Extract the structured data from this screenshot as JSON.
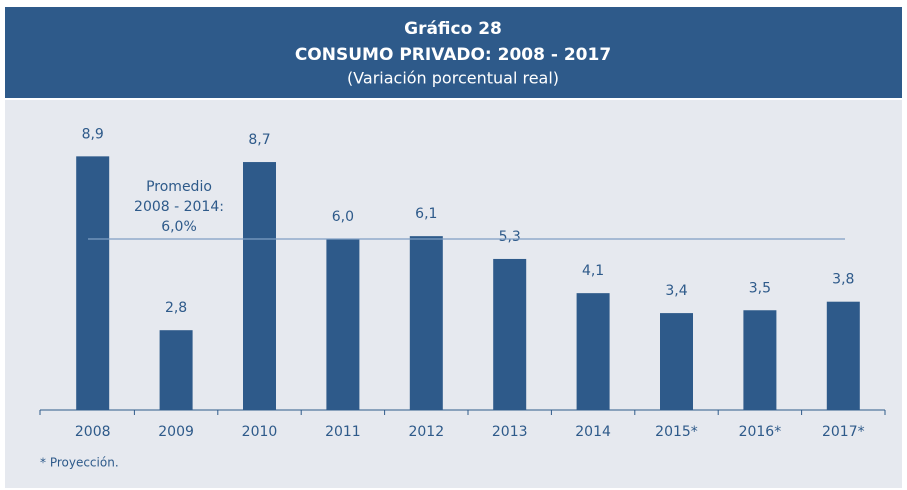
{
  "chart_data": {
    "type": "bar",
    "title": "Gráfico 28",
    "subtitle": "CONSUMO PRIVADO: 2008 - 2017",
    "y_label": "(Variación porcentual real)",
    "categories": [
      "2008",
      "2009",
      "2010",
      "2011",
      "2012",
      "2013",
      "2014",
      "2015*",
      "2016*",
      "2017*"
    ],
    "values": [
      8.9,
      2.8,
      8.7,
      6.0,
      6.1,
      5.3,
      4.1,
      3.4,
      3.5,
      3.8
    ],
    "value_labels": [
      "8,9",
      "2,8",
      "8,7",
      "6,0",
      "6,1",
      "5,3",
      "4,1",
      "3,4",
      "3,5",
      "3,8"
    ],
    "color": "#2e5a8a",
    "ylim": [
      0,
      10
    ],
    "reference_line": {
      "value": 6.0,
      "label": [
        "Promedio",
        "2008 - 2014:",
        "6,0%"
      ]
    },
    "footnote": "* Proyección."
  }
}
